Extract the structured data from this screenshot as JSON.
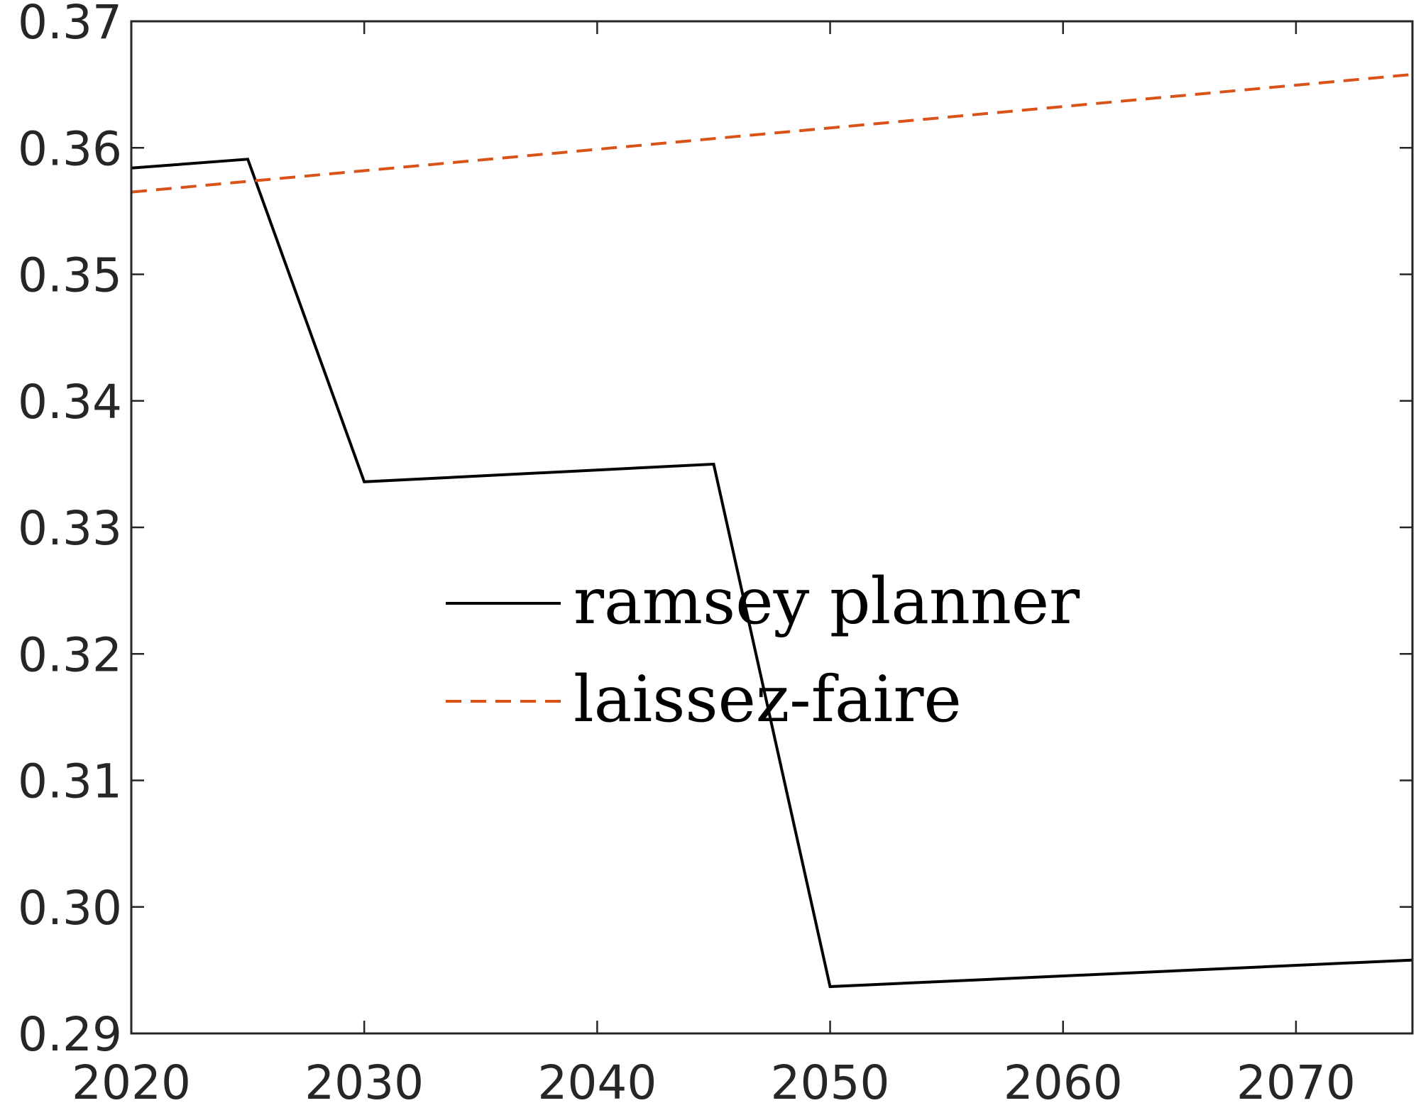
{
  "chart_data": {
    "type": "line",
    "title": "",
    "xlabel": "",
    "ylabel": "",
    "xlim": [
      2020,
      2075
    ],
    "ylim": [
      0.29,
      0.37
    ],
    "xticks": [
      2020,
      2030,
      2040,
      2050,
      2060,
      2070
    ],
    "xtick_labels": [
      "2020",
      "2030",
      "2040",
      "2050",
      "2060",
      "2070"
    ],
    "yticks": [
      0.29,
      0.3,
      0.31,
      0.32,
      0.33,
      0.34,
      0.35,
      0.36,
      0.37
    ],
    "ytick_labels": [
      "0.29",
      "0.30",
      "0.31",
      "0.32",
      "0.33",
      "0.34",
      "0.35",
      "0.36",
      "0.37"
    ],
    "grid": false,
    "legend_position": "center",
    "series": [
      {
        "name": "ramsey planner",
        "color": "#000000",
        "dash": "solid",
        "x": [
          2020,
          2025,
          2030,
          2045,
          2050,
          2075
        ],
        "y": [
          0.3584,
          0.3591,
          0.3336,
          0.335,
          0.2937,
          0.2958
        ]
      },
      {
        "name": "laissez-faire",
        "color": "#D95319",
        "dash": "dashed",
        "x": [
          2020,
          2075
        ],
        "y": [
          0.3565,
          0.3658
        ]
      }
    ]
  }
}
